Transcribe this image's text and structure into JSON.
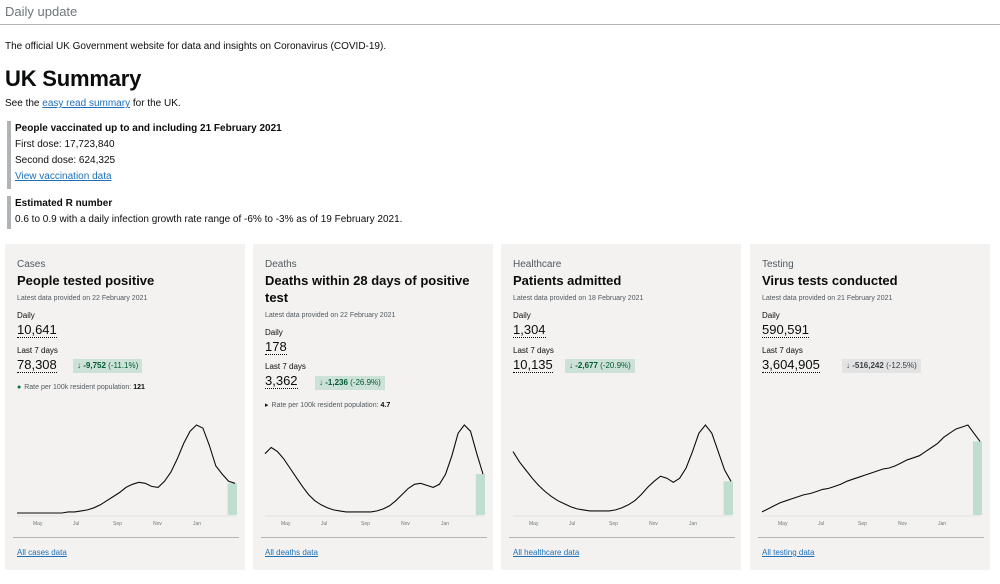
{
  "header": {
    "breadcrumb": "Daily update"
  },
  "intro": "The official UK Government website for data and insights on Coronavirus (COVID-19).",
  "page_title": "UK Summary",
  "summary_line": {
    "prefix": "See the ",
    "link": "easy read summary",
    "suffix": " for the UK."
  },
  "vaccination": {
    "title": "People vaccinated up to and including 21 February 2021",
    "first_dose": "First dose: 17,723,840",
    "second_dose": "Second dose: 624,325",
    "link": "View vaccination data"
  },
  "r_number": {
    "title": "Estimated R number",
    "text": "0.6 to 0.9 with a daily infection growth rate range of -6% to -3% as of 19 February 2021."
  },
  "cards": [
    {
      "category": "Cases",
      "title": "People tested positive",
      "latest": "Latest data provided on 22 February 2021",
      "daily_label": "Daily",
      "daily_value": "10,641",
      "week_label": "Last 7 days",
      "week_value": "78,308",
      "change": "-9,752",
      "change_pct": "(-11.1%)",
      "rate_label": "Rate per 100k resident population:",
      "rate_value": "121",
      "axis_months": [
        "May",
        "Jul",
        "Sep",
        "Nov",
        "Jan"
      ],
      "link": "All cases data",
      "trend": [
        2,
        2,
        2,
        2,
        2,
        2,
        2,
        2,
        3,
        3,
        4,
        5,
        7,
        10,
        14,
        18,
        22,
        27,
        30,
        32,
        31,
        28,
        27,
        33,
        42,
        55,
        70,
        82,
        88,
        85,
        68,
        48,
        40,
        33,
        31
      ],
      "color": "#0b0c0c"
    },
    {
      "category": "Deaths",
      "title": "Deaths within 28 days of positive test",
      "latest": "Latest data provided on 22 February 2021",
      "daily_label": "Daily",
      "daily_value": "178",
      "week_label": "Last 7 days",
      "week_value": "3,362",
      "change": "-1,236",
      "change_pct": "(-26.9%)",
      "rate_label": "Rate per 100k resident population:",
      "rate_value": "4.7",
      "axis_months": [
        "May",
        "Jul",
        "Sep",
        "Nov",
        "Jan"
      ],
      "link": "All deaths data",
      "trend": [
        60,
        66,
        62,
        55,
        46,
        37,
        28,
        20,
        14,
        10,
        7,
        5,
        4,
        3,
        3,
        3,
        3,
        3,
        4,
        6,
        9,
        14,
        20,
        26,
        30,
        31,
        29,
        27,
        30,
        40,
        58,
        80,
        88,
        82,
        60,
        40
      ],
      "color": "#0b0c0c"
    },
    {
      "category": "Healthcare",
      "title": "Patients admitted",
      "latest": "Latest data provided on 18 February 2021",
      "daily_label": "Daily",
      "daily_value": "1,304",
      "week_label": "Last 7 days",
      "week_value": "10,135",
      "change": "-2,677",
      "change_pct": "(-20.9%)",
      "rate_label": "",
      "rate_value": "",
      "axis_months": [
        "May",
        "Jul",
        "Sep",
        "Nov",
        "Jan"
      ],
      "link": "All healthcare data",
      "trend": [
        62,
        52,
        44,
        36,
        29,
        23,
        18,
        14,
        11,
        8,
        6,
        5,
        4,
        4,
        4,
        4,
        5,
        7,
        10,
        14,
        20,
        27,
        33,
        38,
        36,
        32,
        36,
        46,
        62,
        80,
        88,
        80,
        62,
        44,
        33
      ],
      "color": "#0b0c0c"
    },
    {
      "category": "Testing",
      "title": "Virus tests conducted",
      "latest": "Latest data provided on 21 February 2021",
      "daily_label": "Daily",
      "daily_value": "590,591",
      "week_label": "Last 7 days",
      "week_value": "3,604,905",
      "change": "-516,242",
      "change_pct": "(-12.5%)",
      "rate_label": "",
      "rate_value": "",
      "axis_months": [
        "May",
        "Jul",
        "Sep",
        "Nov",
        "Jan"
      ],
      "link": "All testing data",
      "trend": [
        3,
        6,
        9,
        12,
        14,
        16,
        18,
        20,
        21,
        23,
        25,
        26,
        28,
        30,
        33,
        35,
        37,
        39,
        41,
        43,
        45,
        46,
        48,
        51,
        54,
        56,
        58,
        62,
        66,
        70,
        76,
        80,
        84,
        86,
        88,
        80,
        72
      ],
      "color": "#0b0c0c"
    }
  ]
}
